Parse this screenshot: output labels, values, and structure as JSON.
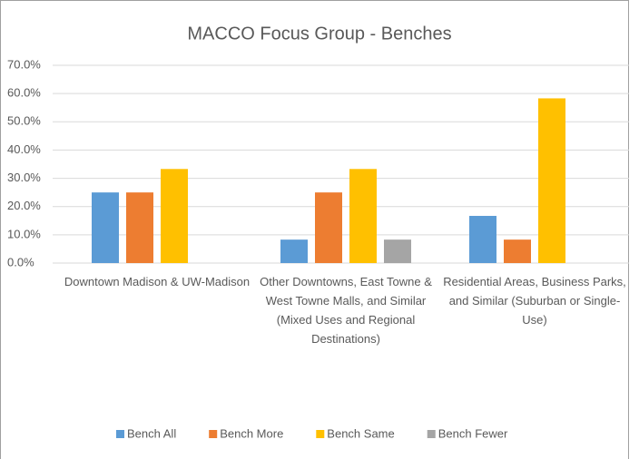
{
  "chart_data": {
    "type": "bar",
    "title": "MACCO Focus Group - Benches",
    "categories": [
      "Downtown Madison & UW-Madison",
      "Other Downtowns, East Towne & West Towne Malls, and Similar (Mixed Uses and Regional Destinations)",
      "Residential Areas, Business Parks, and Similar (Suburban or Single-Use)"
    ],
    "series": [
      {
        "name": "Bench All",
        "color": "#5b9bd5",
        "values": [
          25,
          8.3,
          16.7
        ]
      },
      {
        "name": "Bench More",
        "color": "#ed7d31",
        "values": [
          25,
          25,
          8.3
        ]
      },
      {
        "name": "Bench Same",
        "color": "#ffc000",
        "values": [
          33.3,
          33.3,
          58.3
        ]
      },
      {
        "name": "Bench Fewer",
        "color": "#a5a5a5",
        "values": [
          0,
          8.3,
          0
        ]
      }
    ],
    "ylim": [
      0,
      70
    ],
    "yticks": [
      {
        "value": 0,
        "label": "0.0%"
      },
      {
        "value": 10,
        "label": "10.0%"
      },
      {
        "value": 20,
        "label": "20.0%"
      },
      {
        "value": 30,
        "label": "30.0%"
      },
      {
        "value": 40,
        "label": "40.0%"
      },
      {
        "value": 50,
        "label": "50.0%"
      },
      {
        "value": 60,
        "label": "60.0%"
      },
      {
        "value": 70,
        "label": "70.0%"
      }
    ],
    "grid": true,
    "legend": "bottom"
  }
}
